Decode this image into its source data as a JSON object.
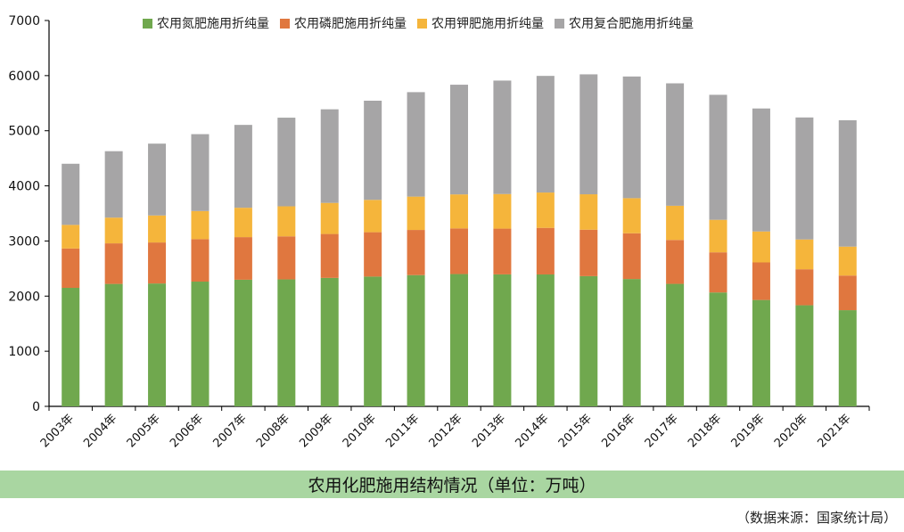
{
  "chart_data": {
    "type": "bar",
    "stacked": true,
    "title": "农用化肥施用结构情况（单位：万吨）",
    "source": "（数据来源：国家统计局）",
    "xlabel": "",
    "ylabel": "",
    "ylim": [
      0,
      7000
    ],
    "yticks": [
      0,
      1000,
      2000,
      3000,
      4000,
      5000,
      6000,
      7000
    ],
    "grid": false,
    "legend_position": "top",
    "categories": [
      "2003年",
      "2004年",
      "2005年",
      "2006年",
      "2007年",
      "2008年",
      "2009年",
      "2010年",
      "2011年",
      "2012年",
      "2013年",
      "2014年",
      "2015年",
      "2016年",
      "2017年",
      "2018年",
      "2019年",
      "2020年",
      "2021年"
    ],
    "series": [
      {
        "name": "农用氮肥施用折纯量",
        "color": "#70a84e",
        "values": [
          2150,
          2221,
          2229,
          2263,
          2297,
          2303,
          2330,
          2354,
          2381,
          2400,
          2394,
          2393,
          2362,
          2310,
          2222,
          2066,
          1930,
          1834,
          1745
        ]
      },
      {
        "name": "农用磷肥施用折纯量",
        "color": "#e0773f",
        "values": [
          714,
          736,
          744,
          770,
          773,
          781,
          797,
          805,
          819,
          828,
          830,
          845,
          843,
          830,
          797,
          728,
          681,
          653,
          628
        ]
      },
      {
        "name": "农用钾肥施用折纯量",
        "color": "#f5b53b",
        "values": [
          428,
          467,
          490,
          510,
          533,
          545,
          564,
          587,
          605,
          617,
          628,
          641,
          642,
          637,
          620,
          590,
          562,
          541,
          525
        ]
      },
      {
        "name": "农用复合肥施用折纯量",
        "color": "#a6a5a6",
        "values": [
          1109,
          1205,
          1303,
          1395,
          1503,
          1608,
          1698,
          1799,
          1895,
          1990,
          2058,
          2116,
          2176,
          2207,
          2221,
          2268,
          2231,
          2213,
          2293
        ]
      }
    ]
  }
}
